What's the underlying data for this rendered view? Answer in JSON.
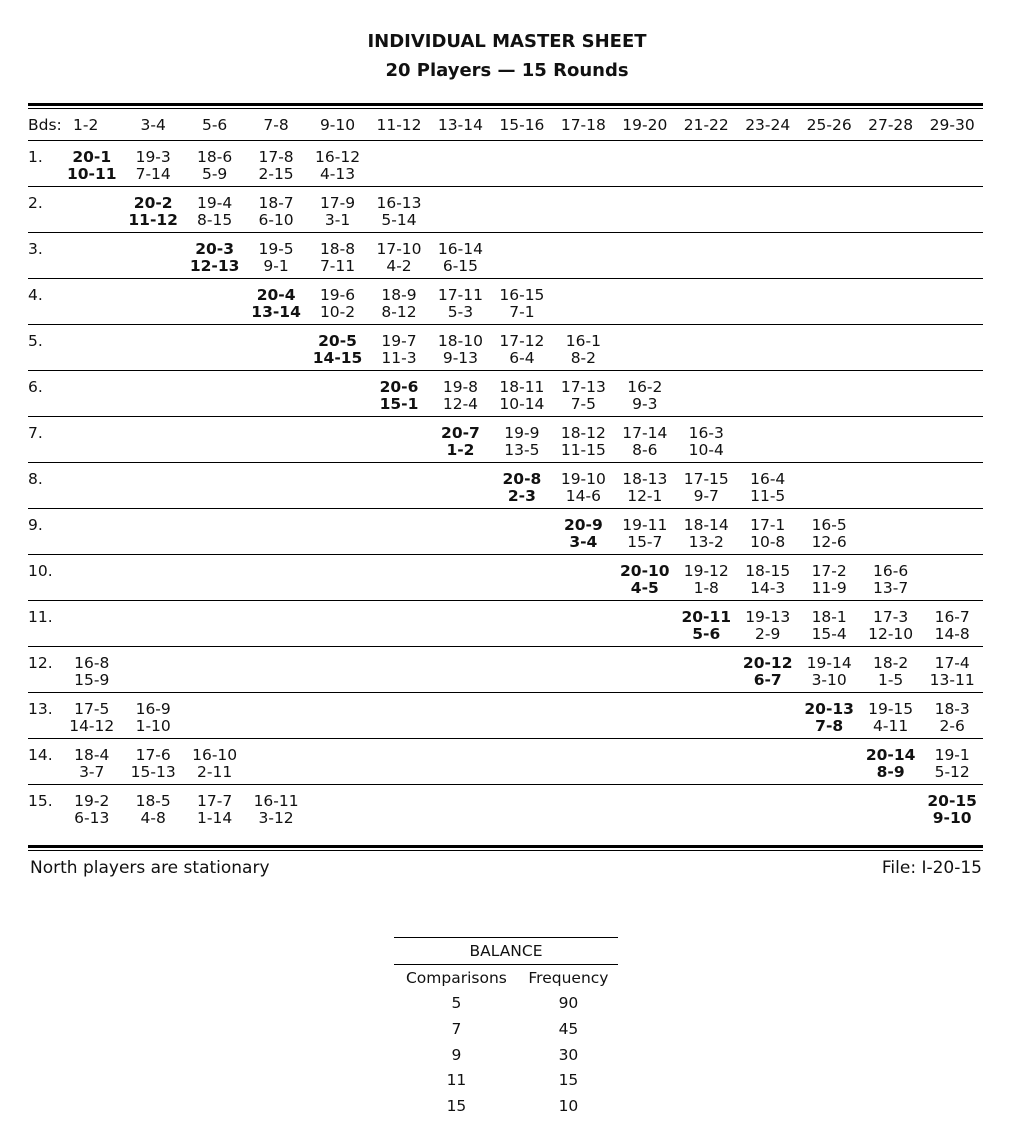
{
  "title": "INDIVIDUAL MASTER SHEET",
  "subtitle": "20 Players — 15 Rounds",
  "header_label": "Bds:",
  "boards": [
    "1-2",
    "3-4",
    "5-6",
    "7-8",
    "9-10",
    "11-12",
    "13-14",
    "15-16",
    "17-18",
    "19-20",
    "21-22",
    "23-24",
    "25-26",
    "27-28",
    "29-30"
  ],
  "rounds": [
    {
      "label": "1.",
      "cells": [
        {
          "t": "20-1",
          "b": "10-11",
          "bold": true
        },
        {
          "t": "19-3",
          "b": "7-14"
        },
        {
          "t": "18-6",
          "b": "5-9"
        },
        {
          "t": "17-8",
          "b": "2-15"
        },
        {
          "t": "16-12",
          "b": "4-13"
        },
        null,
        null,
        null,
        null,
        null,
        null,
        null,
        null,
        null,
        null
      ]
    },
    {
      "label": "2.",
      "cells": [
        null,
        {
          "t": "20-2",
          "b": "11-12",
          "bold": true
        },
        {
          "t": "19-4",
          "b": "8-15"
        },
        {
          "t": "18-7",
          "b": "6-10"
        },
        {
          "t": "17-9",
          "b": "3-1"
        },
        {
          "t": "16-13",
          "b": "5-14"
        },
        null,
        null,
        null,
        null,
        null,
        null,
        null,
        null,
        null
      ]
    },
    {
      "label": "3.",
      "cells": [
        null,
        null,
        {
          "t": "20-3",
          "b": "12-13",
          "bold": true
        },
        {
          "t": "19-5",
          "b": "9-1"
        },
        {
          "t": "18-8",
          "b": "7-11"
        },
        {
          "t": "17-10",
          "b": "4-2"
        },
        {
          "t": "16-14",
          "b": "6-15"
        },
        null,
        null,
        null,
        null,
        null,
        null,
        null,
        null
      ]
    },
    {
      "label": "4.",
      "cells": [
        null,
        null,
        null,
        {
          "t": "20-4",
          "b": "13-14",
          "bold": true
        },
        {
          "t": "19-6",
          "b": "10-2"
        },
        {
          "t": "18-9",
          "b": "8-12"
        },
        {
          "t": "17-11",
          "b": "5-3"
        },
        {
          "t": "16-15",
          "b": "7-1"
        },
        null,
        null,
        null,
        null,
        null,
        null,
        null
      ]
    },
    {
      "label": "5.",
      "cells": [
        null,
        null,
        null,
        null,
        {
          "t": "20-5",
          "b": "14-15",
          "bold": true
        },
        {
          "t": "19-7",
          "b": "11-3"
        },
        {
          "t": "18-10",
          "b": "9-13"
        },
        {
          "t": "17-12",
          "b": "6-4"
        },
        {
          "t": "16-1",
          "b": "8-2"
        },
        null,
        null,
        null,
        null,
        null,
        null
      ]
    },
    {
      "label": "6.",
      "cells": [
        null,
        null,
        null,
        null,
        null,
        {
          "t": "20-6",
          "b": "15-1",
          "bold": true
        },
        {
          "t": "19-8",
          "b": "12-4"
        },
        {
          "t": "18-11",
          "b": "10-14"
        },
        {
          "t": "17-13",
          "b": "7-5"
        },
        {
          "t": "16-2",
          "b": "9-3"
        },
        null,
        null,
        null,
        null,
        null
      ]
    },
    {
      "label": "7.",
      "cells": [
        null,
        null,
        null,
        null,
        null,
        null,
        {
          "t": "20-7",
          "b": "1-2",
          "bold": true
        },
        {
          "t": "19-9",
          "b": "13-5"
        },
        {
          "t": "18-12",
          "b": "11-15"
        },
        {
          "t": "17-14",
          "b": "8-6"
        },
        {
          "t": "16-3",
          "b": "10-4"
        },
        null,
        null,
        null,
        null
      ]
    },
    {
      "label": "8.",
      "cells": [
        null,
        null,
        null,
        null,
        null,
        null,
        null,
        {
          "t": "20-8",
          "b": "2-3",
          "bold": true
        },
        {
          "t": "19-10",
          "b": "14-6"
        },
        {
          "t": "18-13",
          "b": "12-1"
        },
        {
          "t": "17-15",
          "b": "9-7"
        },
        {
          "t": "16-4",
          "b": "11-5"
        },
        null,
        null,
        null
      ]
    },
    {
      "label": "9.",
      "cells": [
        null,
        null,
        null,
        null,
        null,
        null,
        null,
        null,
        {
          "t": "20-9",
          "b": "3-4",
          "bold": true
        },
        {
          "t": "19-11",
          "b": "15-7"
        },
        {
          "t": "18-14",
          "b": "13-2"
        },
        {
          "t": "17-1",
          "b": "10-8"
        },
        {
          "t": "16-5",
          "b": "12-6"
        },
        null,
        null
      ]
    },
    {
      "label": "10.",
      "cells": [
        null,
        null,
        null,
        null,
        null,
        null,
        null,
        null,
        null,
        {
          "t": "20-10",
          "b": "4-5",
          "bold": true
        },
        {
          "t": "19-12",
          "b": "1-8"
        },
        {
          "t": "18-15",
          "b": "14-3"
        },
        {
          "t": "17-2",
          "b": "11-9"
        },
        {
          "t": "16-6",
          "b": "13-7"
        },
        null
      ]
    },
    {
      "label": "11.",
      "cells": [
        null,
        null,
        null,
        null,
        null,
        null,
        null,
        null,
        null,
        null,
        {
          "t": "20-11",
          "b": "5-6",
          "bold": true
        },
        {
          "t": "19-13",
          "b": "2-9"
        },
        {
          "t": "18-1",
          "b": "15-4"
        },
        {
          "t": "17-3",
          "b": "12-10"
        },
        {
          "t": "16-7",
          "b": "14-8"
        }
      ]
    },
    {
      "label": "12.",
      "cells": [
        {
          "t": "16-8",
          "b": "15-9"
        },
        null,
        null,
        null,
        null,
        null,
        null,
        null,
        null,
        null,
        null,
        {
          "t": "20-12",
          "b": "6-7",
          "bold": true
        },
        {
          "t": "19-14",
          "b": "3-10"
        },
        {
          "t": "18-2",
          "b": "1-5"
        },
        {
          "t": "17-4",
          "b": "13-11"
        }
      ]
    },
    {
      "label": "13.",
      "cells": [
        {
          "t": "17-5",
          "b": "14-12"
        },
        {
          "t": "16-9",
          "b": "1-10"
        },
        null,
        null,
        null,
        null,
        null,
        null,
        null,
        null,
        null,
        null,
        {
          "t": "20-13",
          "b": "7-8",
          "bold": true
        },
        {
          "t": "19-15",
          "b": "4-11"
        },
        {
          "t": "18-3",
          "b": "2-6"
        }
      ]
    },
    {
      "label": "14.",
      "cells": [
        {
          "t": "18-4",
          "b": "3-7"
        },
        {
          "t": "17-6",
          "b": "15-13"
        },
        {
          "t": "16-10",
          "b": "2-11"
        },
        null,
        null,
        null,
        null,
        null,
        null,
        null,
        null,
        null,
        null,
        {
          "t": "20-14",
          "b": "8-9",
          "bold": true
        },
        {
          "t": "19-1",
          "b": "5-12"
        }
      ]
    },
    {
      "label": "15.",
      "cells": [
        {
          "t": "19-2",
          "b": "6-13"
        },
        {
          "t": "18-5",
          "b": "4-8"
        },
        {
          "t": "17-7",
          "b": "1-14"
        },
        {
          "t": "16-11",
          "b": "3-12"
        },
        null,
        null,
        null,
        null,
        null,
        null,
        null,
        null,
        null,
        null,
        {
          "t": "20-15",
          "b": "9-10",
          "bold": true
        }
      ]
    }
  ],
  "footer_left": "North players are stationary",
  "footer_right": "File: I-20-15",
  "balance": {
    "title": "BALANCE",
    "headers": [
      "Comparisons",
      "Frequency"
    ],
    "rows": [
      [
        "5",
        "90"
      ],
      [
        "7",
        "45"
      ],
      [
        "9",
        "30"
      ],
      [
        "11",
        "15"
      ],
      [
        "15",
        "10"
      ]
    ]
  }
}
